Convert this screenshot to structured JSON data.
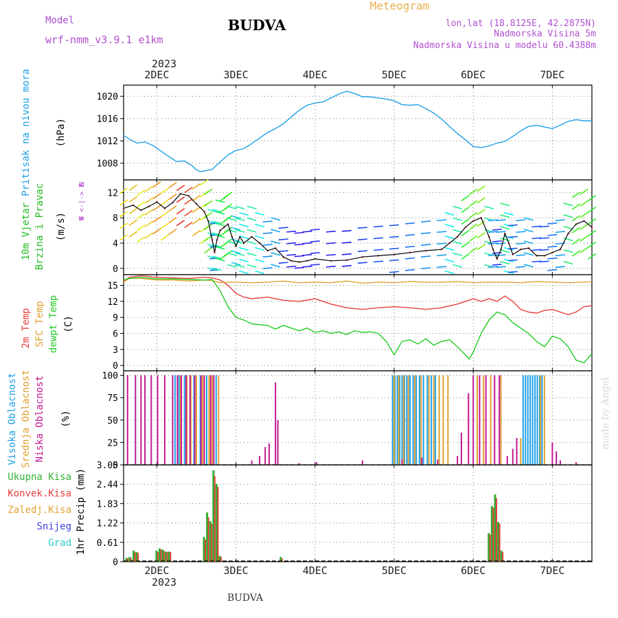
{
  "header": {
    "model_label": "Model",
    "model_name": "wrf-nmm_v3.9.1 e1km",
    "title": "BUDVA",
    "meteogram_label": "Meteogram",
    "location": "lon,lat (18.8125E, 42.2875N)",
    "elevation": "Nadmorska Visina 5m",
    "model_elevation": "Nadmorska Visina u modelu 60.4388m"
  },
  "footer": {
    "station": "BUDVA",
    "watermark": "made by Angel"
  },
  "time_axis": {
    "year": "2023",
    "start_day": 1.58,
    "end_day": 7.5,
    "day_labels": [
      "2DEC",
      "3DEC",
      "4DEC",
      "5DEC",
      "6DEC",
      "7DEC"
    ],
    "day_positions": [
      2,
      3,
      4,
      5,
      6,
      7
    ]
  },
  "colors": {
    "pressure": "#1ea0e6",
    "wind_label": "#22bb22",
    "wind_dir_label": "#b040d0",
    "temp2m": "#e63c3c",
    "sfc_temp": "#e0a030",
    "dewpoint": "#22cc22",
    "cloud_high": "#1ea0e6",
    "cloud_mid": "#e0a030",
    "cloud_low": "#c01890",
    "rain_total": "#30b030",
    "rain_conv": "#e63c3c",
    "snow": "#4040e0",
    "graupel": "#30c8c8",
    "header_purple": "#b050d0",
    "header_orange": "#e8b050"
  },
  "chart_data": [
    {
      "type": "line",
      "panel": "pressure",
      "ylabel": [
        "Pritisak na nivou mora",
        "(hPa)"
      ],
      "ylim": [
        1005,
        1022
      ],
      "yticks": [
        1008,
        1012,
        1016,
        1020
      ],
      "grid": true,
      "series": [
        {
          "x": [
            1.58,
            1.65,
            1.75,
            1.85,
            1.95,
            2.05,
            2.15,
            2.25,
            2.35,
            2.45,
            2.5,
            2.55,
            2.6,
            2.7,
            2.8,
            2.9,
            3.0,
            3.1,
            3.2,
            3.3,
            3.4,
            3.5,
            3.6,
            3.7,
            3.8,
            3.9,
            4.0,
            4.1,
            4.2,
            4.3,
            4.4,
            4.5,
            4.6,
            4.7,
            4.8,
            4.9,
            5.0,
            5.1,
            5.2,
            5.3,
            5.4,
            5.5,
            5.6,
            5.7,
            5.8,
            5.9,
            6.0,
            6.1,
            6.2,
            6.3,
            6.4,
            6.5,
            6.6,
            6.7,
            6.8,
            6.9,
            7.0,
            7.1,
            7.2,
            7.3,
            7.4,
            7.5
          ],
          "y": [
            1013.0,
            1012.3,
            1011.6,
            1011.8,
            1011.2,
            1010.2,
            1009.2,
            1008.3,
            1008.4,
            1007.5,
            1006.8,
            1006.5,
            1006.6,
            1006.9,
            1008.2,
            1009.5,
            1010.3,
            1010.6,
            1011.5,
            1012.5,
            1013.5,
            1014.2,
            1015.1,
            1016.3,
            1017.5,
            1018.4,
            1018.8,
            1019.0,
            1019.7,
            1020.4,
            1020.9,
            1020.5,
            1019.9,
            1019.9,
            1019.7,
            1019.5,
            1019.2,
            1018.5,
            1018.4,
            1018.5,
            1017.8,
            1017.0,
            1015.9,
            1014.6,
            1013.3,
            1012.2,
            1011.0,
            1010.8,
            1011.1,
            1011.6,
            1011.9,
            1012.8,
            1013.8,
            1014.6,
            1014.8,
            1014.5,
            1014.2,
            1014.8,
            1015.5,
            1015.8,
            1015.6,
            1015.6
          ]
        }
      ]
    },
    {
      "type": "line",
      "panel": "wind",
      "ylabel": [
        "10m Vjetar",
        "Brzina i Pravac",
        "(m/s)"
      ],
      "direction_legend": [
        "N",
        "W <-|-> E",
        "S"
      ],
      "ylim": [
        -1,
        14
      ],
      "yticks": [
        0,
        4,
        8,
        12
      ],
      "grid": true,
      "series": [
        {
          "name": "speed",
          "x": [
            1.58,
            1.7,
            1.8,
            1.9,
            2.0,
            2.1,
            2.2,
            2.3,
            2.4,
            2.5,
            2.6,
            2.65,
            2.7,
            2.73,
            2.76,
            2.8,
            2.85,
            2.9,
            2.95,
            3.0,
            3.05,
            3.1,
            3.2,
            3.3,
            3.4,
            3.5,
            3.6,
            3.7,
            3.8,
            3.9,
            4.0,
            4.2,
            4.4,
            4.6,
            4.8,
            5.0,
            5.2,
            5.4,
            5.6,
            5.7,
            5.8,
            5.9,
            6.0,
            6.1,
            6.2,
            6.25,
            6.3,
            6.35,
            6.4,
            6.45,
            6.5,
            6.6,
            6.7,
            6.8,
            6.9,
            7.0,
            7.1,
            7.2,
            7.3,
            7.4,
            7.5
          ],
          "y": [
            9.5,
            10.0,
            9.2,
            9.8,
            10.5,
            9.5,
            10.4,
            11.8,
            11.5,
            10.2,
            9.0,
            7.5,
            4.5,
            2.5,
            4.5,
            6.0,
            6.5,
            7.0,
            5.0,
            3.5,
            5.0,
            4.0,
            5.0,
            4.0,
            2.8,
            3.2,
            1.8,
            1.2,
            1.0,
            1.2,
            1.5,
            1.2,
            1.3,
            1.8,
            2.0,
            2.2,
            2.5,
            2.8,
            3.0,
            4.0,
            5.0,
            6.5,
            7.5,
            8.0,
            5.0,
            3.0,
            1.5,
            3.0,
            5.5,
            4.0,
            2.2,
            3.0,
            3.2,
            2.0,
            2.0,
            2.5,
            3.0,
            5.5,
            7.0,
            7.5,
            6.5
          ]
        }
      ]
    },
    {
      "type": "line",
      "panel": "temperature",
      "ylabel": [
        "2m Temp",
        "SFC Temp",
        "dewpt Temp",
        "(C)"
      ],
      "ylim": [
        -1,
        17
      ],
      "yticks": [
        0,
        3,
        6,
        9,
        12,
        15
      ],
      "grid": true,
      "series": [
        {
          "name": "2m Temp",
          "x": [
            1.58,
            1.65,
            1.8,
            2.0,
            2.2,
            2.4,
            2.6,
            2.7,
            2.8,
            2.9,
            3.0,
            3.1,
            3.2,
            3.4,
            3.6,
            3.8,
            4.0,
            4.2,
            4.4,
            4.6,
            4.8,
            5.0,
            5.2,
            5.4,
            5.6,
            5.8,
            5.9,
            6.0,
            6.1,
            6.2,
            6.3,
            6.4,
            6.5,
            6.6,
            6.7,
            6.8,
            6.9,
            7.0,
            7.2,
            7.3,
            7.4,
            7.5
          ],
          "y": [
            15.8,
            16.5,
            16.8,
            16.5,
            16.4,
            16.3,
            16.5,
            16.4,
            16.0,
            15.0,
            13.5,
            12.8,
            12.5,
            12.8,
            12.2,
            12.0,
            12.5,
            11.5,
            10.8,
            10.5,
            10.8,
            11.0,
            10.8,
            10.5,
            10.8,
            11.5,
            12.0,
            12.5,
            12.0,
            12.5,
            12.0,
            13.0,
            12.0,
            10.5,
            10.0,
            9.8,
            10.3,
            10.5,
            9.5,
            10.0,
            11.0,
            11.2
          ]
        },
        {
          "name": "SFC Temp",
          "x": [
            1.58,
            1.65,
            1.8,
            2.0,
            2.2,
            2.4,
            2.6,
            2.7,
            2.8,
            2.9,
            3.0,
            3.2,
            3.4,
            3.6,
            3.8,
            4.0,
            4.2,
            4.4,
            4.6,
            4.8,
            5.0,
            5.2,
            5.4,
            5.6,
            5.8,
            6.0,
            6.2,
            6.4,
            6.6,
            6.8,
            7.0,
            7.2,
            7.4,
            7.5
          ],
          "y": [
            15.6,
            16.3,
            16.3,
            16.0,
            16.0,
            15.8,
            16.0,
            15.9,
            15.5,
            15.6,
            15.6,
            15.5,
            15.6,
            15.8,
            15.5,
            15.6,
            15.5,
            15.8,
            15.4,
            15.6,
            15.5,
            15.7,
            15.6,
            15.6,
            15.7,
            15.5,
            15.6,
            15.6,
            15.5,
            15.7,
            15.6,
            15.5,
            15.6,
            15.7
          ]
        },
        {
          "name": "dewpt Temp",
          "x": [
            1.58,
            1.65,
            1.8,
            2.0,
            2.2,
            2.4,
            2.6,
            2.7,
            2.8,
            2.9,
            3.0,
            3.1,
            3.2,
            3.4,
            3.5,
            3.6,
            3.7,
            3.8,
            3.9,
            4.0,
            4.1,
            4.2,
            4.3,
            4.4,
            4.5,
            4.6,
            4.7,
            4.8,
            4.9,
            5.0,
            5.1,
            5.2,
            5.3,
            5.4,
            5.5,
            5.6,
            5.7,
            5.8,
            5.9,
            5.95,
            6.0,
            6.1,
            6.2,
            6.3,
            6.4,
            6.5,
            6.6,
            6.7,
            6.8,
            6.9,
            7.0,
            7.1,
            7.2,
            7.3,
            7.4,
            7.5
          ],
          "y": [
            16.0,
            16.3,
            16.5,
            16.2,
            16.2,
            16.1,
            16.0,
            16.1,
            14.0,
            11.0,
            9.0,
            8.5,
            7.8,
            7.5,
            6.8,
            7.5,
            7.0,
            6.5,
            7.0,
            6.2,
            6.5,
            6.0,
            6.3,
            5.8,
            6.5,
            6.2,
            6.3,
            6.0,
            4.5,
            2.0,
            4.5,
            4.8,
            4.0,
            5.0,
            3.8,
            4.5,
            4.8,
            3.5,
            2.0,
            1.2,
            2.5,
            6.0,
            8.5,
            10.0,
            9.5,
            8.0,
            7.0,
            6.0,
            4.5,
            3.5,
            5.5,
            5.0,
            3.5,
            1.0,
            0.5,
            2.2
          ]
        }
      ]
    },
    {
      "type": "bar",
      "panel": "cloud",
      "ylabel": [
        "Visoka Oblacnost",
        "Srednja Oblacnost",
        "Niska Oblacnost",
        "(%)"
      ],
      "ylim": [
        0,
        105
      ],
      "yticks": [
        0,
        25,
        50,
        75,
        100
      ],
      "grid": true,
      "series": [
        {
          "name": "Visoka Oblacnost",
          "x": [
            2.23,
            2.28,
            2.35,
            2.47,
            2.55,
            2.63,
            2.75,
            4.98,
            5.01,
            5.04,
            5.07,
            5.1,
            5.13,
            5.16,
            5.2,
            5.24,
            5.28,
            5.32,
            5.37,
            5.42,
            5.47,
            5.52,
            6.63,
            6.66,
            6.69,
            6.72,
            6.75,
            6.78,
            6.81,
            6.84,
            6.87
          ],
          "values": [
            100,
            100,
            100,
            100,
            100,
            100,
            100,
            100,
            100,
            100,
            100,
            100,
            100,
            100,
            100,
            100,
            100,
            100,
            100,
            100,
            100,
            100,
            100,
            100,
            100,
            100,
            100,
            100,
            100,
            100,
            100
          ]
        },
        {
          "name": "Srednja Oblacnost",
          "x": [
            2.3,
            2.38,
            2.43,
            2.5,
            2.58,
            2.66,
            2.7,
            2.78,
            5.0,
            5.06,
            5.12,
            5.18,
            5.26,
            5.34,
            5.44,
            5.5,
            5.57,
            5.62,
            5.68,
            6.05,
            6.13,
            6.22,
            6.35,
            6.6,
            6.85,
            6.9
          ],
          "values": [
            100,
            100,
            100,
            100,
            100,
            100,
            100,
            100,
            100,
            100,
            100,
            100,
            100,
            100,
            100,
            100,
            100,
            100,
            100,
            100,
            100,
            100,
            100,
            30,
            100,
            100
          ]
        },
        {
          "name": "Niska Oblacnost",
          "x": [
            1.63,
            1.73,
            1.8,
            1.85,
            1.93,
            2.01,
            2.1,
            2.2,
            2.26,
            2.31,
            2.37,
            2.42,
            2.48,
            2.56,
            2.6,
            2.68,
            2.72,
            3.2,
            3.3,
            3.37,
            3.42,
            3.5,
            3.53,
            3.8,
            4.02,
            4.6,
            5.1,
            5.35,
            5.55,
            5.8,
            5.85,
            5.94,
            6.0,
            6.08,
            6.16,
            6.27,
            6.33,
            6.43,
            6.5,
            6.55,
            7.0,
            7.05,
            7.1,
            7.3
          ],
          "values": [
            100,
            100,
            100,
            100,
            100,
            100,
            100,
            100,
            100,
            100,
            100,
            100,
            100,
            100,
            100,
            100,
            100,
            5,
            10,
            20,
            24,
            92,
            50,
            2,
            3,
            5,
            6,
            8,
            6,
            10,
            36,
            80,
            100,
            100,
            100,
            100,
            100,
            10,
            18,
            30,
            25,
            15,
            5,
            3
          ]
        }
      ]
    },
    {
      "type": "bar",
      "panel": "precip",
      "ylabel": [
        "1hr Precip (mm)"
      ],
      "legend": [
        "Ukupna Kisa",
        "Konvek.Kisa",
        "Zaledj.Kisa",
        "Snijeg",
        "Grad"
      ],
      "ylim": [
        0,
        3.05
      ],
      "yticks": [
        0,
        0.61,
        1.22,
        1.83,
        2.44,
        3.05
      ],
      "grid": true,
      "series": [
        {
          "name": "Ukupna Kisa",
          "x": [
            1.62,
            1.66,
            1.71,
            1.75,
            2.0,
            2.04,
            2.08,
            2.12,
            2.16,
            2.6,
            2.64,
            2.68,
            2.72,
            2.76,
            2.8,
            3.57,
            6.2,
            6.24,
            6.28,
            6.32,
            6.36,
            7.0
          ],
          "values": [
            0.12,
            0.15,
            0.35,
            0.3,
            0.35,
            0.42,
            0.38,
            0.32,
            0.32,
            0.78,
            1.55,
            1.28,
            2.88,
            2.45,
            0.18,
            0.15,
            0.9,
            1.75,
            2.12,
            1.25,
            0.35,
            0.05
          ]
        },
        {
          "name": "Konvek.Kisa",
          "x": [
            1.62,
            1.66,
            1.71,
            1.75,
            2.0,
            2.04,
            2.08,
            2.12,
            2.16,
            2.6,
            2.64,
            2.68,
            2.72,
            2.76,
            2.8,
            3.57,
            6.2,
            6.24,
            6.28,
            6.32,
            6.36,
            7.0
          ],
          "values": [
            0.1,
            0.12,
            0.3,
            0.28,
            0.3,
            0.38,
            0.33,
            0.3,
            0.3,
            0.7,
            1.4,
            1.2,
            2.7,
            2.35,
            0.15,
            0.1,
            0.85,
            1.7,
            2.0,
            1.2,
            0.3,
            0.03
          ]
        }
      ]
    }
  ]
}
